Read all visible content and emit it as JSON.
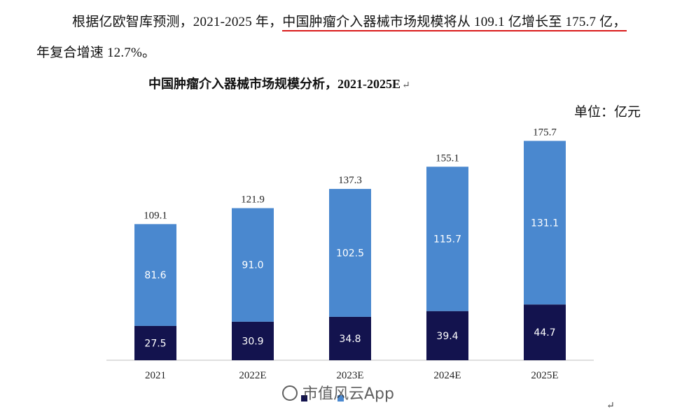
{
  "paragraph": {
    "line1_start": "根据亿欧智库预测，2021-2025 年，",
    "line1_underlined": "中国肿瘤介入器械市场规模将从 109.1 亿增长至 175.7 亿，",
    "line2": "年复合增速 12.7%。"
  },
  "chart_title": "中国肿瘤介入器械市场规模分析，2021-2025E",
  "title_return_mark": "↵",
  "unit_label": "单位：亿元",
  "watermark_text": "市值风云App",
  "corner_return_mark": "↵",
  "colors": {
    "underline": "#d91a1a",
    "series_top": "#4a88cf",
    "series_bottom": "#13134e"
  },
  "chart_data": {
    "type": "bar",
    "stacked": true,
    "title": "中国肿瘤介入器械市场规模分析，2021-2025E",
    "unit": "单位：亿元",
    "categories": [
      "2021",
      "2022E",
      "2023E",
      "2024E",
      "2025E"
    ],
    "series": [
      {
        "name": "",
        "values": [
          27.5,
          30.9,
          34.8,
          39.4,
          44.7
        ]
      },
      {
        "name": "",
        "values": [
          81.6,
          91.0,
          102.5,
          115.7,
          131.1
        ]
      }
    ],
    "segment_labels": [
      [
        "27.5",
        "30.9",
        "34.8",
        "39.4",
        "44.7"
      ],
      [
        "81.6",
        "91.0",
        "102.5",
        "115.7",
        "131.1"
      ]
    ],
    "totals": [
      109.1,
      121.9,
      137.3,
      155.1,
      175.7
    ],
    "total_labels": [
      "109.1",
      "121.9",
      "137.3",
      "155.1",
      "175.7"
    ],
    "ylim": [
      0,
      185
    ],
    "grid": false,
    "legend_position": "bottom"
  }
}
